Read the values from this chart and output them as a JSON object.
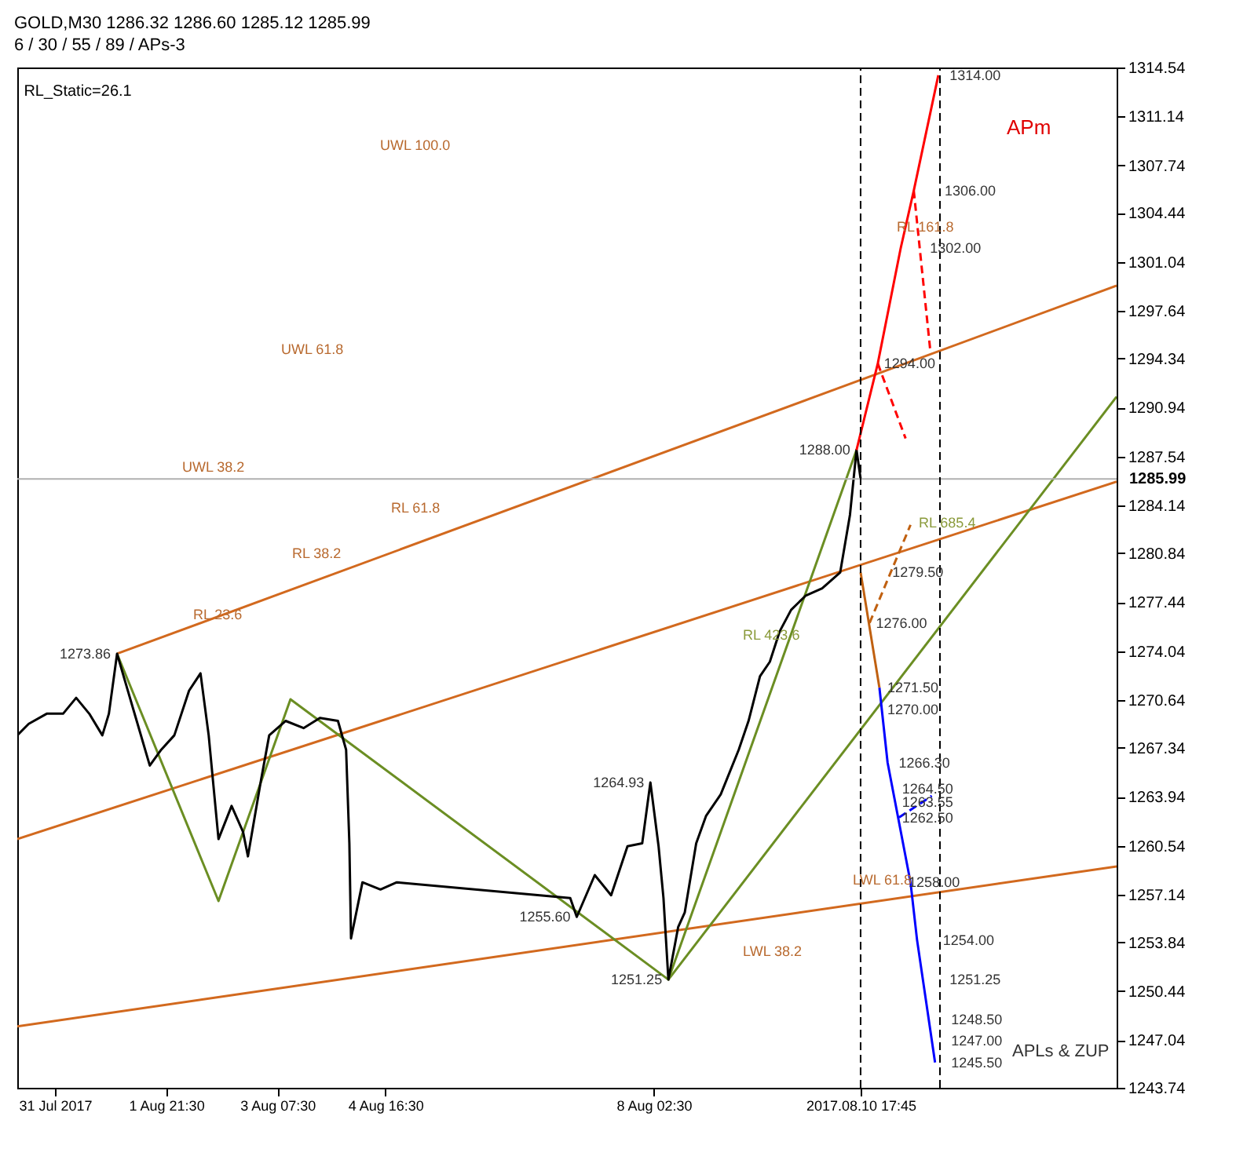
{
  "chart_data": {
    "type": "line",
    "title": "GOLD,M30  1286.32 1286.60 1285.12 1285.99",
    "subtitle": "6 / 30 / 55 / 89 / APs-3",
    "xlim": [
      "2017-07-31T00:00",
      "2017-08-14T00:00"
    ],
    "xticks": [
      {
        "value": "2017-07-31T11:30",
        "label": "31 Jul 2017"
      },
      {
        "value": "2017-08-01T21:30",
        "label": "1 Aug 21:30"
      },
      {
        "value": "2017-08-03T07:30",
        "label": "3 Aug 07:30"
      },
      {
        "value": "2017-08-04T16:30",
        "label": "4 Aug 16:30"
      },
      {
        "value": "2017-08-08T02:30",
        "label": "8 Aug 02:30"
      },
      {
        "value": "2017-08-10T17:45",
        "label": "2017.08.10 17:45"
      }
    ],
    "ylim": [
      1243.74,
      1314.54
    ],
    "yticks": [
      1243.74,
      1247.04,
      1250.44,
      1253.84,
      1257.14,
      1260.54,
      1263.94,
      1267.34,
      1270.64,
      1274.04,
      1277.44,
      1280.84,
      1284.14,
      1287.54,
      1290.94,
      1294.34,
      1297.64,
      1301.04,
      1304.44,
      1307.74,
      1311.14,
      1314.54
    ],
    "grid": false,
    "marker": "none",
    "series": [
      {
        "color": "#d2691e",
        "x": [
          "2017-07-31T00:00",
          "2017-08-14T00:00"
        ],
        "values": [
          1248.0,
          1259.1
        ]
      },
      {
        "color": "#d2691e",
        "x": [
          "2017-07-31T00:00",
          "2017-08-14T00:00"
        ],
        "values": [
          1261.0,
          1285.8
        ]
      },
      {
        "color": "#d2691e",
        "x": [
          "2017-08-01T06:30",
          "2017-08-14T00:00"
        ],
        "values": [
          1273.86,
          1299.4
        ]
      },
      {
        "color": "#6b8e23",
        "x": [
          "2017-08-08T07:00",
          "2017-08-14T00:00"
        ],
        "values": [
          1251.25,
          1291.7
        ]
      },
      {
        "color": "#6b8e23",
        "x": [
          "2017-08-01T06:30",
          "2017-08-02T13:30",
          "2017-08-03T11:30",
          "2017-08-08T07:00",
          "2017-08-10T16:30"
        ],
        "values": [
          1273.86,
          1256.7,
          1270.7,
          1251.25,
          1288.0
        ]
      },
      {
        "color": "#000000",
        "x": [
          "2017-07-31T00:00",
          "2017-07-31T03:30",
          "2017-07-31T09:00",
          "2017-07-31T14:00",
          "2017-07-31T18:00",
          "2017-07-31T22:00",
          "2017-08-01T02:00",
          "2017-08-01T04:00",
          "2017-08-01T06:30",
          "2017-08-01T08:30",
          "2017-08-01T12:30",
          "2017-08-01T16:30",
          "2017-08-01T20:00",
          "2017-08-02T00:00",
          "2017-08-02T04:30",
          "2017-08-02T08:00",
          "2017-08-02T10:30",
          "2017-08-02T13:30",
          "2017-08-02T17:30",
          "2017-08-02T21:00",
          "2017-08-02T22:30",
          "2017-08-03T02:30",
          "2017-08-03T05:00",
          "2017-08-03T10:00",
          "2017-08-03T15:30",
          "2017-08-03T20:30",
          "2017-08-04T02:00",
          "2017-08-04T04:30",
          "2017-08-04T05:30",
          "2017-08-04T06:00",
          "2017-08-04T09:30",
          "2017-08-04T15:00",
          "2017-08-04T20:00",
          "2017-08-07T01:00",
          "2017-08-07T03:00",
          "2017-08-07T08:30",
          "2017-08-07T13:30",
          "2017-08-07T18:30",
          "2017-08-07T23:00",
          "2017-08-08T01:30",
          "2017-08-08T04:00",
          "2017-08-08T05:30",
          "2017-08-08T07:00",
          "2017-08-08T10:00",
          "2017-08-08T12:00",
          "2017-08-08T15:30",
          "2017-08-08T18:30",
          "2017-08-08T23:00",
          "2017-08-09T04:30",
          "2017-08-09T07:30",
          "2017-08-09T11:00",
          "2017-08-09T14:00",
          "2017-08-09T17:00",
          "2017-08-09T20:30",
          "2017-08-10T01:00",
          "2017-08-10T06:00",
          "2017-08-10T11:30",
          "2017-08-10T14:30",
          "2017-08-10T16:30",
          "2017-08-10T17:45"
        ],
        "values": [
          1268.2,
          1269.0,
          1269.7,
          1269.7,
          1270.8,
          1269.7,
          1268.2,
          1269.7,
          1273.86,
          1272.3,
          1269.2,
          1266.1,
          1267.2,
          1268.2,
          1271.3,
          1272.5,
          1268.2,
          1261.0,
          1263.3,
          1261.5,
          1259.8,
          1265.1,
          1268.2,
          1269.2,
          1268.7,
          1269.4,
          1269.2,
          1267.2,
          1260.7,
          1254.1,
          1258.0,
          1257.5,
          1258.0,
          1256.9,
          1255.6,
          1258.5,
          1257.1,
          1260.5,
          1260.7,
          1264.93,
          1260.5,
          1256.9,
          1251.25,
          1254.9,
          1255.9,
          1260.7,
          1262.6,
          1264.1,
          1267.2,
          1269.2,
          1272.3,
          1273.3,
          1275.4,
          1276.9,
          1277.9,
          1278.4,
          1279.5,
          1283.5,
          1288.0,
          1286.0
        ]
      },
      {
        "color": "#ff0000",
        "x": [
          "2017-08-10T16:30",
          "2017-08-10T23:00",
          "2017-08-11T06:00",
          "2017-08-11T10:00",
          "2017-08-11T17:30"
        ],
        "values": [
          1288.0,
          1294.0,
          1302.0,
          1306.0,
          1314.0
        ]
      },
      {
        "color": "#ff0000",
        "line_style": "dashed",
        "x": [
          "2017-08-11T10:00",
          "2017-08-11T15:00"
        ],
        "values": [
          1306.0,
          1295.0
        ]
      },
      {
        "color": "#ff0000",
        "line_style": "dashed",
        "x": [
          "2017-08-10T23:00",
          "2017-08-11T07:30"
        ],
        "values": [
          1294.0,
          1288.8
        ]
      },
      {
        "color": "#c06010",
        "x": [
          "2017-08-10T17:45",
          "2017-08-10T23:30"
        ],
        "values": [
          1279.5,
          1271.5
        ]
      },
      {
        "color": "#c06010",
        "line_style": "dashed",
        "x": [
          "2017-08-10T20:30",
          "2017-08-11T09:00"
        ],
        "values": [
          1276.0,
          1282.8
        ]
      },
      {
        "color": "#0000ff",
        "x": [
          "2017-08-10T23:30",
          "2017-08-11T02:00",
          "2017-08-11T09:00",
          "2017-08-11T11:00",
          "2017-08-11T16:30"
        ],
        "values": [
          1271.5,
          1266.3,
          1258.0,
          1254.0,
          1245.5
        ]
      },
      {
        "color": "#0000ff",
        "line_style": "dashed",
        "x": [
          "2017-08-11T05:30",
          "2017-08-11T15:30"
        ],
        "values": [
          1262.5,
          1264.0
        ]
      }
    ],
    "ref_lines": [
      {
        "axis": "y",
        "value": 1285.99,
        "label": "1285.99",
        "color": "#b0b0b0",
        "line_style": "solid"
      },
      {
        "axis": "x",
        "value": "2017-08-10T17:45",
        "label": null,
        "color": "#000000",
        "line_style": "dashed"
      },
      {
        "axis": "x",
        "value": "2017-08-11T18:00",
        "label": null,
        "color": "#000000",
        "line_style": "dashed"
      }
    ],
    "annotations": [
      "RL_Static=26.1",
      "APm",
      "APLs & ZUP",
      "UWL 100.0",
      "UWL 61.8",
      "UWL 38.2",
      "RL 61.8",
      "RL 38.2",
      "RL 23.6",
      "RL 161.8",
      "RL 685.4",
      "RL 423.6",
      "LWL 38.2",
      "LWL 61.8",
      {
        "text": "1273.86",
        "x": "2017-08-01T06:30",
        "y": 1273.86
      },
      {
        "text": "1264.93",
        "x": "2017-08-08T01:30",
        "y": 1264.93
      },
      {
        "text": "1255.60",
        "x": "2017-08-07T03:00",
        "y": 1255.6
      },
      {
        "text": "1251.25",
        "x": "2017-08-08T07:00",
        "y": 1251.25
      },
      {
        "text": "1314.00",
        "x": "2017-08-11T19:00",
        "y": 1314.0
      },
      {
        "text": "1306.00",
        "x": "2017-08-11T17:30",
        "y": 1306.0
      },
      {
        "text": "1302.00",
        "x": "2017-08-11T13:00",
        "y": 1302.0
      },
      {
        "text": "1294.00",
        "x": "2017-08-10T23:00",
        "y": 1294.0
      },
      {
        "text": "1288.00",
        "x": "2017-08-10T16:30",
        "y": 1288.0
      },
      {
        "text": "1279.50",
        "x": "2017-08-11T01:30",
        "y": 1279.5
      },
      {
        "text": "1276.00",
        "x": "2017-08-10T20:30",
        "y": 1276.0
      },
      {
        "text": "1271.50",
        "x": "2017-08-11T00:00",
        "y": 1271.5
      },
      {
        "text": "1270.00",
        "x": "2017-08-11T00:00",
        "y": 1270.0
      },
      {
        "text": "1266.30",
        "x": "2017-08-11T03:30",
        "y": 1266.3
      },
      {
        "text": "1264.50",
        "x": "2017-08-11T04:30",
        "y": 1264.5
      },
      {
        "text": "1263.55",
        "x": "2017-08-11T04:30",
        "y": 1263.55
      },
      {
        "text": "1262.50",
        "x": "2017-08-11T04:30",
        "y": 1262.5
      },
      {
        "text": "1258.00",
        "x": "2017-08-11T06:30",
        "y": 1258.0
      },
      {
        "text": "1254.00",
        "x": "2017-08-11T17:00",
        "y": 1254.0
      },
      {
        "text": "1251.25",
        "x": "2017-08-11T19:00",
        "y": 1251.25
      },
      {
        "text": "1248.50",
        "x": "2017-08-11T19:30",
        "y": 1248.5
      },
      {
        "text": "1247.00",
        "x": "2017-08-11T19:30",
        "y": 1247.0
      },
      {
        "text": "1245.50",
        "x": "2017-08-11T19:30",
        "y": 1245.5
      }
    ]
  }
}
